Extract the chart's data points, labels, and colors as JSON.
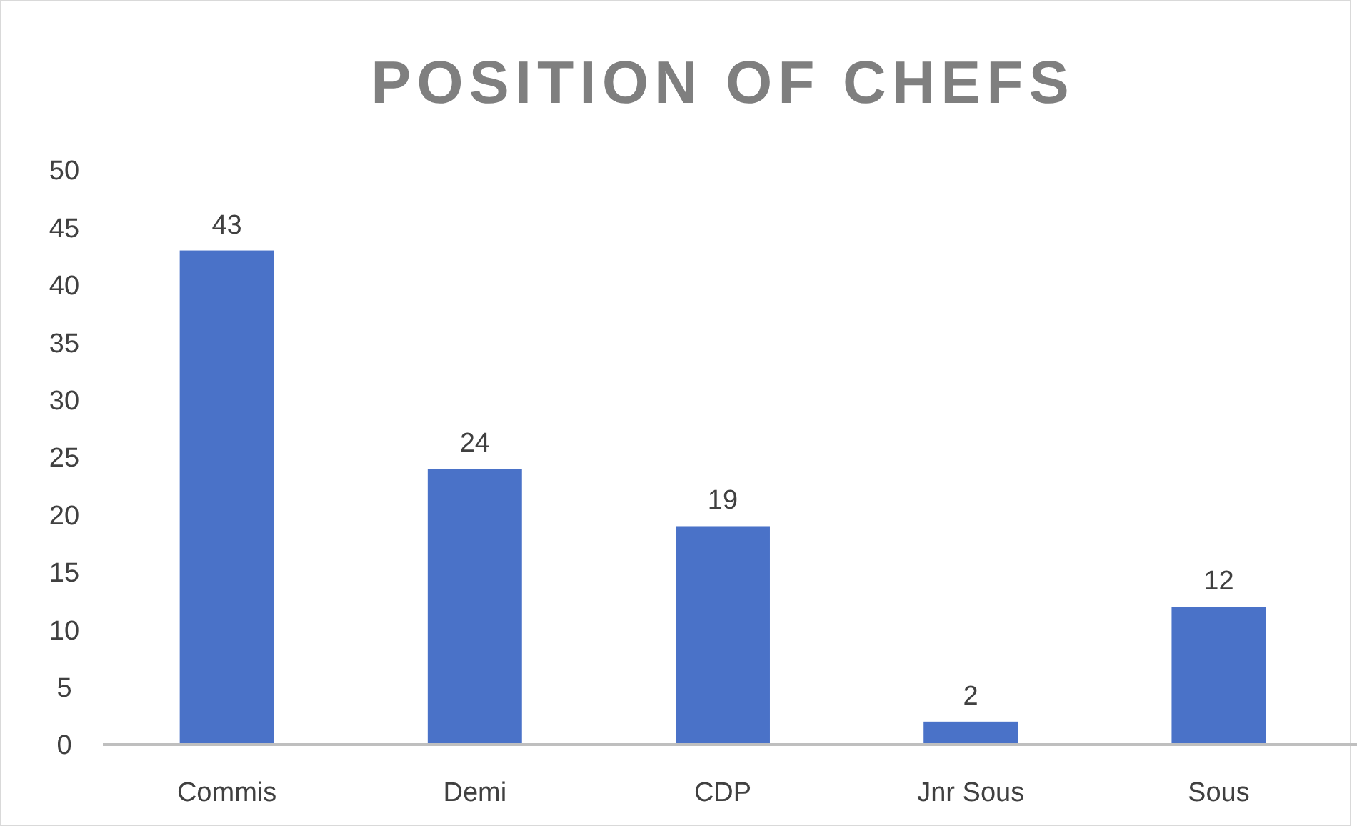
{
  "chart_data": {
    "type": "bar",
    "title": "POSITION OF CHEFS",
    "categories": [
      "Commis",
      "Demi",
      "CDP",
      "Jnr Sous",
      "Sous"
    ],
    "values": [
      43,
      24,
      19,
      2,
      12
    ],
    "color": "#4a72c8",
    "ylim": [
      0,
      50
    ],
    "yticks": [
      0,
      5,
      10,
      15,
      20,
      25,
      30,
      35,
      40,
      45,
      50
    ],
    "grid": false,
    "data_labels": true
  }
}
